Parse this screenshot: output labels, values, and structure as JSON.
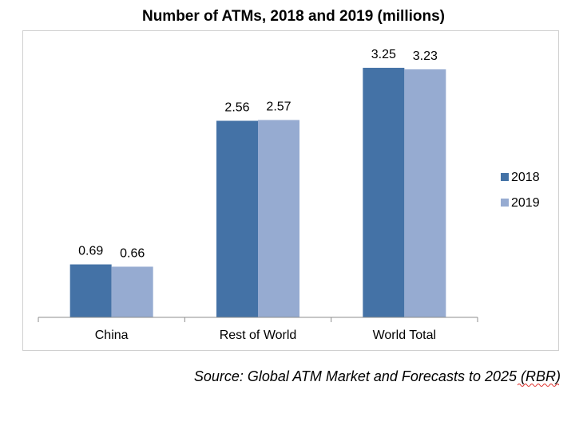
{
  "chart_data": {
    "type": "bar",
    "title": "Number of ATMs, 2018 and 2019 (millions)",
    "categories": [
      "China",
      "Rest of World",
      "World Total"
    ],
    "series": [
      {
        "name": "2018",
        "values": [
          0.69,
          2.56,
          3.25
        ],
        "color": "#4472a6"
      },
      {
        "name": "2019",
        "values": [
          0.66,
          2.57,
          3.23
        ],
        "color": "#96abd1"
      }
    ],
    "xlabel": "",
    "ylabel": "",
    "ylim": [
      0,
      3.5
    ],
    "grid": false,
    "legend_position": "right"
  },
  "source": "Source: Global ATM Market and Forecasts to 2025 (RBR)"
}
